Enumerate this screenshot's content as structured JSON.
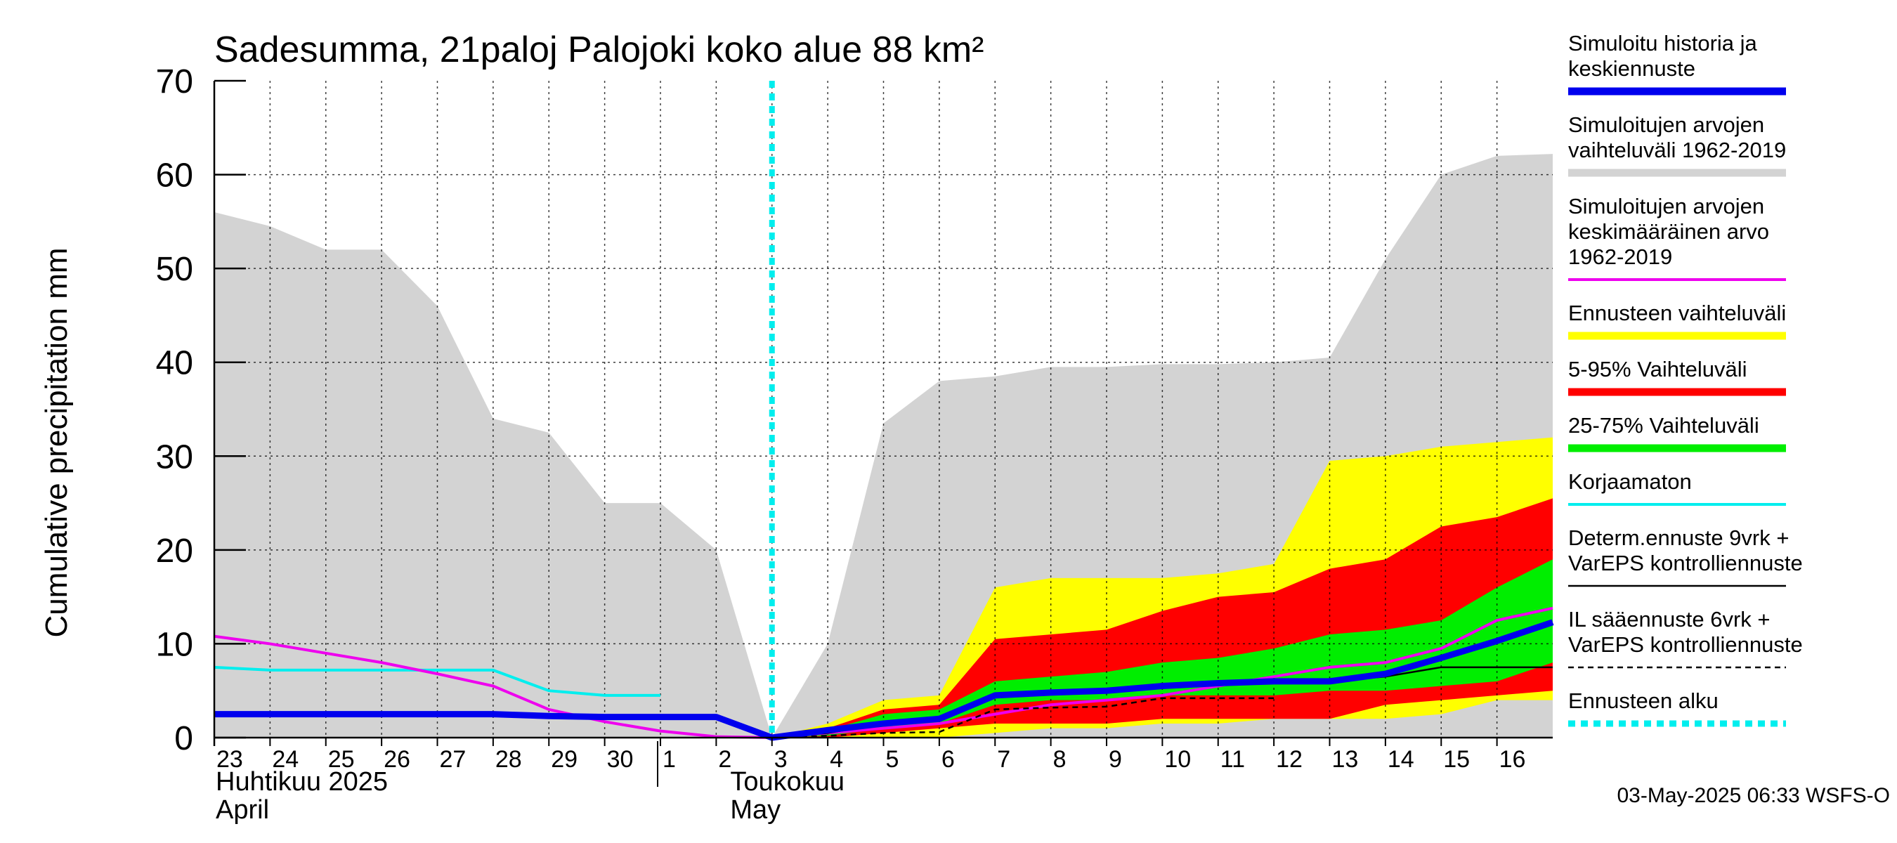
{
  "chart_data": {
    "type": "area",
    "title": "Sadesumma, 21paloj Palojoki koko alue 88 km²",
    "ylabel": "Cumulative precipitation   mm",
    "ylim": [
      0,
      70
    ],
    "yticks": [
      0,
      10,
      20,
      30,
      40,
      50,
      60,
      70
    ],
    "grid": true,
    "x_start_date": "2025-04-23",
    "day_labels": [
      "23",
      "24",
      "25",
      "26",
      "27",
      "28",
      "29",
      "30",
      "1",
      "2",
      "3",
      "4",
      "5",
      "6",
      "7",
      "8",
      "9",
      "10",
      "11",
      "12",
      "13",
      "14",
      "15",
      "16"
    ],
    "month_labels": [
      {
        "fi": "Huhtikuu  2025",
        "en": "April"
      },
      {
        "fi": "Toukokuu",
        "en": "May"
      }
    ],
    "forecast_start_day": 10,
    "legend": [
      {
        "lines": [
          "Simuloitu historia ja",
          "keskiennuste"
        ],
        "color": "#0000ee",
        "style": "thick"
      },
      {
        "lines": [
          "Simuloitujen arvojen",
          "vaihteluväli 1962-2019"
        ],
        "color": "#d3d3d3",
        "style": "thick"
      },
      {
        "lines": [
          "Simuloitujen arvojen",
          "keskimääräinen arvo",
          "   1962-2019"
        ],
        "color": "#ee00ee",
        "style": "normal"
      },
      {
        "lines": [
          "Ennusteen vaihteluväli"
        ],
        "color": "#ffff00",
        "style": "thick"
      },
      {
        "lines": [
          "5-95% Vaihteluväli"
        ],
        "color": "#ff0000",
        "style": "thick"
      },
      {
        "lines": [
          "25-75% Vaihteluväli"
        ],
        "color": "#00ee00",
        "style": "thick"
      },
      {
        "lines": [
          "Korjaamaton"
        ],
        "color": "#00eeee",
        "style": "normal"
      },
      {
        "lines": [
          "Determ.ennuste 9vrk +",
          "VarEPS kontrolliennuste"
        ],
        "color": "#000000",
        "style": "thin"
      },
      {
        "lines": [
          "IL sääennuste 6vrk  +",
          "  VarEPS kontrolliennuste"
        ],
        "color": "#000000",
        "style": "dashed"
      },
      {
        "lines": [
          "Ennusteen alku"
        ],
        "color": "#00eeee",
        "style": "dotted"
      }
    ],
    "series": {
      "hist_range": {
        "x": [
          0,
          1,
          2,
          3,
          4,
          5,
          6,
          7,
          8,
          9,
          10,
          11,
          12,
          13,
          14,
          15,
          16,
          17,
          18,
          19,
          20,
          21,
          22,
          23,
          24
        ],
        "upper": [
          56,
          54.5,
          52,
          52,
          46,
          34,
          32.5,
          25,
          25,
          20,
          0,
          10,
          33.5,
          38,
          38.5,
          39.5,
          39.5,
          39.8,
          39.8,
          40,
          40.5,
          51,
          60,
          62,
          62.2
        ],
        "lower": [
          0,
          0,
          0,
          0,
          0,
          0,
          0,
          0,
          0,
          0,
          0,
          0,
          0,
          0,
          0,
          0,
          0,
          0,
          0,
          0,
          0,
          0,
          0,
          0,
          0
        ]
      },
      "forecast_range": {
        "x": [
          10,
          11,
          12,
          13,
          14,
          15,
          16,
          17,
          18,
          19,
          20,
          21,
          22,
          23,
          24
        ],
        "upper": [
          0,
          1.5,
          4,
          4.5,
          16,
          17,
          17,
          17,
          17.5,
          18.5,
          29.5,
          30,
          31,
          31.5,
          32
        ],
        "lower": [
          0,
          0,
          0,
          0,
          0.5,
          1,
          1,
          1.5,
          1.5,
          2,
          2,
          2,
          2.5,
          4,
          4
        ]
      },
      "p5_95": {
        "x": [
          10,
          11,
          12,
          13,
          14,
          15,
          16,
          17,
          18,
          19,
          20,
          21,
          22,
          23,
          24
        ],
        "upper": [
          0,
          1,
          3,
          3.5,
          10.5,
          11,
          11.5,
          13.5,
          15,
          15.5,
          18,
          19,
          22.5,
          23.5,
          25.5
        ],
        "lower": [
          0,
          0,
          0.5,
          1,
          1.5,
          1.5,
          1.5,
          2,
          2,
          2,
          2,
          3.5,
          4,
          4.5,
          5
        ]
      },
      "p25_75": {
        "x": [
          10,
          11,
          12,
          13,
          14,
          15,
          16,
          17,
          18,
          19,
          20,
          21,
          22,
          23,
          24
        ],
        "upper": [
          0,
          0.8,
          2.5,
          3,
          6,
          6.5,
          7,
          8,
          8.5,
          9.5,
          11,
          11.5,
          12.5,
          16,
          19
        ],
        "lower": [
          0,
          0.2,
          1,
          1.5,
          3.5,
          4,
          4,
          4.5,
          4.5,
          4.5,
          5,
          5,
          5.5,
          6,
          8
        ]
      },
      "hist_mean": {
        "x": [
          0,
          1,
          2,
          3,
          4,
          5,
          6,
          7,
          8,
          9,
          10,
          11,
          12,
          13,
          14,
          15,
          16,
          17,
          18,
          19,
          20,
          21,
          22,
          23,
          24
        ],
        "y": [
          10.8,
          10,
          9,
          8,
          6.8,
          5.5,
          3,
          1.7,
          0.7,
          0.1,
          0,
          0.5,
          1,
          1.5,
          2.5,
          3.5,
          4,
          4.5,
          5.5,
          6.5,
          7.5,
          8,
          9.5,
          12.5,
          13.8
        ]
      },
      "uncorrected": {
        "x": [
          0,
          1,
          2,
          3,
          4,
          5,
          6,
          7,
          8
        ],
        "y": [
          7.5,
          7.2,
          7.2,
          7.2,
          7.2,
          7.2,
          5,
          4.5,
          4.5
        ]
      },
      "deterministic": {
        "x": [
          10,
          11,
          12,
          13,
          14,
          15,
          16,
          17,
          18,
          19,
          20,
          21,
          22,
          23,
          24
        ],
        "y": [
          0,
          0.5,
          1.5,
          2,
          4.5,
          5,
          5,
          5.5,
          6,
          6,
          6,
          6.5,
          7.5,
          7.5,
          7.5
        ]
      },
      "il_forecast": {
        "x": [
          10,
          11,
          12,
          13,
          14,
          15,
          16,
          17,
          18,
          19
        ],
        "y": [
          0,
          0.2,
          0.5,
          0.6,
          3,
          3.2,
          3.3,
          4.2,
          4.2,
          4.2
        ]
      },
      "mean_forecast": {
        "x": [
          0,
          1,
          2,
          3,
          4,
          5,
          6,
          7,
          8,
          9,
          10,
          11,
          12,
          13,
          14,
          15,
          16,
          17,
          18,
          19,
          20,
          21,
          22,
          23,
          24
        ],
        "y": [
          2.5,
          2.5,
          2.5,
          2.5,
          2.5,
          2.5,
          2.3,
          2.2,
          2.2,
          2.2,
          0,
          0.8,
          1.5,
          2,
          4.5,
          4.8,
          5,
          5.5,
          5.8,
          6,
          6,
          6.8,
          8.5,
          10.3,
          12.3
        ]
      }
    }
  },
  "footer": "03-May-2025 06:33 WSFS-O"
}
